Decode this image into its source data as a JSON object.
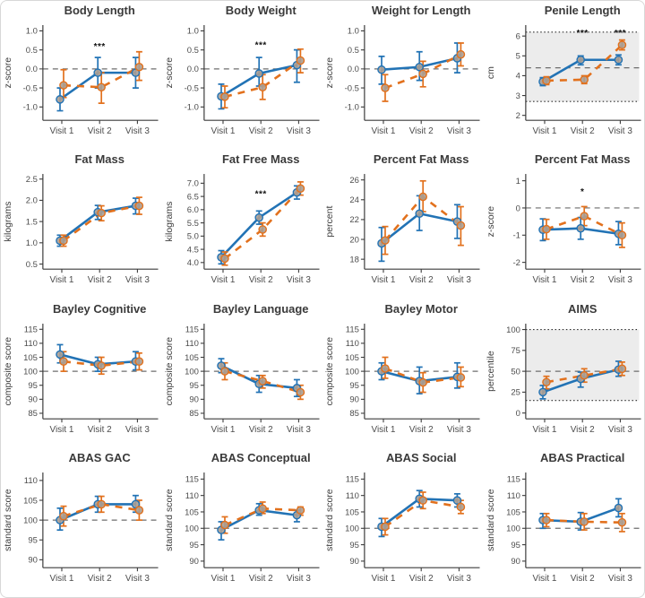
{
  "figure": {
    "x_categories": [
      "Visit 1",
      "Visit 2",
      "Visit 3"
    ],
    "colors": {
      "series_blue": "#2273b5",
      "series_orange": "#e2711d",
      "marker_fill": "#ab9e94",
      "band_fill": "#ececec",
      "refline": "#6e6e6e",
      "dotted_line": "#2b2b2b",
      "axis": "#3c3c3c",
      "tick_text": "#4c4c4c",
      "title_text": "#3a3a3a",
      "sig_text": "#111111"
    }
  },
  "chart_data": [
    {
      "type": "line",
      "title": "Body Length",
      "ylabel": "z-score",
      "ylim": [
        -1.35,
        1.15
      ],
      "yticks": [
        "-1.0",
        "-0.5",
        "0.0",
        "0.5",
        "1.0"
      ],
      "refline_dashed": 0,
      "band": null,
      "sig": [
        {
          "visit_index": 1,
          "y": 0.52,
          "label": "***"
        }
      ],
      "series": [
        {
          "name": "blue-solid",
          "color_key": "series_blue",
          "dash": "solid",
          "values": [
            -0.8,
            -0.1,
            -0.1
          ],
          "err_lo": [
            -1.1,
            -0.5,
            -0.5
          ],
          "err_hi": [
            -0.5,
            0.3,
            0.3
          ]
        },
        {
          "name": "orange-dashed",
          "color_key": "series_orange",
          "dash": "dashed",
          "values": [
            -0.43,
            -0.48,
            0.05
          ],
          "err_lo": [
            -0.75,
            -0.9,
            -0.3
          ],
          "err_hi": [
            -0.02,
            -0.1,
            0.45
          ]
        }
      ]
    },
    {
      "type": "line",
      "title": "Body Weight",
      "ylabel": "z-score",
      "ylim": [
        -1.35,
        1.15
      ],
      "yticks": [
        "-1.0",
        "-0.5",
        "0.0",
        "0.5",
        "1.0"
      ],
      "refline_dashed": 0,
      "band": null,
      "sig": [
        {
          "visit_index": 1,
          "y": 0.55,
          "label": "***"
        }
      ],
      "series": [
        {
          "name": "blue-solid",
          "color_key": "series_blue",
          "dash": "solid",
          "values": [
            -0.72,
            -0.12,
            0.1
          ],
          "err_lo": [
            -1.05,
            -0.45,
            -0.35
          ],
          "err_hi": [
            -0.4,
            0.3,
            0.5
          ]
        },
        {
          "name": "orange-dashed",
          "color_key": "series_orange",
          "dash": "dashed",
          "values": [
            -0.73,
            -0.48,
            0.22
          ],
          "err_lo": [
            -1.02,
            -0.8,
            -0.1
          ],
          "err_hi": [
            -0.45,
            -0.15,
            0.52
          ]
        }
      ]
    },
    {
      "type": "line",
      "title": "Weight for Length",
      "ylabel": "z-score",
      "ylim": [
        -1.35,
        1.15
      ],
      "yticks": [
        "-1.0",
        "-0.5",
        "0.0",
        "0.5",
        "1.0"
      ],
      "refline_dashed": 0,
      "band": null,
      "sig": [],
      "series": [
        {
          "name": "blue-solid",
          "color_key": "series_blue",
          "dash": "solid",
          "values": [
            -0.02,
            0.05,
            0.28
          ],
          "err_lo": [
            -0.4,
            -0.3,
            -0.1
          ],
          "err_hi": [
            0.33,
            0.45,
            0.68
          ]
        },
        {
          "name": "orange-dashed",
          "color_key": "series_orange",
          "dash": "dashed",
          "values": [
            -0.5,
            -0.13,
            0.38
          ],
          "err_lo": [
            -0.85,
            -0.47,
            0.08
          ],
          "err_hi": [
            -0.15,
            0.2,
            0.68
          ]
        }
      ]
    },
    {
      "type": "line",
      "title": "Penile Length",
      "ylabel": "cm",
      "ylim": [
        1.75,
        6.55
      ],
      "yticks": [
        "2",
        "3",
        "4",
        "5",
        "6"
      ],
      "refline_dashed": 4.4,
      "band": [
        2.7,
        6.2
      ],
      "sig": [
        {
          "visit_index": 1,
          "y": 6.02,
          "label": "***"
        },
        {
          "visit_index": 2,
          "y": 6.02,
          "label": "***"
        }
      ],
      "series": [
        {
          "name": "blue-solid",
          "color_key": "series_blue",
          "dash": "solid",
          "values": [
            3.7,
            4.8,
            4.8
          ],
          "err_lo": [
            3.5,
            4.55,
            4.55
          ],
          "err_hi": [
            3.9,
            5.0,
            5.05
          ]
        },
        {
          "name": "orange-dashed",
          "color_key": "series_orange",
          "dash": "dashed",
          "values": [
            3.75,
            3.8,
            5.55
          ],
          "err_lo": [
            3.55,
            3.6,
            5.3
          ],
          "err_hi": [
            3.95,
            4.0,
            5.8
          ]
        }
      ]
    },
    {
      "type": "line",
      "title": "Fat Mass",
      "ylabel": "kilograms",
      "ylim": [
        0.38,
        2.62
      ],
      "yticks": [
        "0.5",
        "1.0",
        "1.5",
        "2.0",
        "2.5"
      ],
      "refline_dashed": null,
      "band": null,
      "sig": [],
      "series": [
        {
          "name": "blue-solid",
          "color_key": "series_blue",
          "dash": "solid",
          "values": [
            1.05,
            1.72,
            1.87
          ],
          "err_lo": [
            0.92,
            1.55,
            1.68
          ],
          "err_hi": [
            1.18,
            1.88,
            2.05
          ]
        },
        {
          "name": "orange-dashed",
          "color_key": "series_orange",
          "dash": "dashed",
          "values": [
            1.05,
            1.7,
            1.87
          ],
          "err_lo": [
            0.92,
            1.52,
            1.67
          ],
          "err_hi": [
            1.18,
            1.87,
            2.07
          ]
        }
      ]
    },
    {
      "type": "line",
      "title": "Fat Free Mass",
      "ylabel": "kilograms",
      "ylim": [
        3.75,
        7.35
      ],
      "yticks": [
        "4.0",
        "4.5",
        "5.0",
        "5.5",
        "6.0",
        "6.5",
        "7.0"
      ],
      "refline_dashed": null,
      "band": null,
      "sig": [
        {
          "visit_index": 1,
          "y": 6.48,
          "label": "***"
        }
      ],
      "series": [
        {
          "name": "blue-solid",
          "color_key": "series_blue",
          "dash": "solid",
          "values": [
            4.2,
            5.7,
            6.65
          ],
          "err_lo": [
            3.95,
            5.45,
            6.4
          ],
          "err_hi": [
            4.45,
            5.95,
            6.9
          ]
        },
        {
          "name": "orange-dashed",
          "color_key": "series_orange",
          "dash": "dashed",
          "values": [
            4.15,
            5.25,
            6.8
          ],
          "err_lo": [
            3.9,
            5.0,
            6.55
          ],
          "err_hi": [
            4.4,
            5.5,
            7.05
          ]
        }
      ]
    },
    {
      "type": "line",
      "title": "Percent Fat Mass",
      "ylabel": "percent",
      "ylim": [
        17.0,
        26.6
      ],
      "yticks": [
        "18",
        "20",
        "22",
        "24",
        "26"
      ],
      "refline_dashed": null,
      "band": null,
      "sig": [],
      "series": [
        {
          "name": "blue-solid",
          "color_key": "series_blue",
          "dash": "solid",
          "values": [
            19.6,
            22.6,
            21.8
          ],
          "err_lo": [
            17.8,
            20.9,
            20.1
          ],
          "err_hi": [
            21.2,
            24.4,
            23.5
          ]
        },
        {
          "name": "orange-dashed",
          "color_key": "series_orange",
          "dash": "dashed",
          "values": [
            19.9,
            24.3,
            21.4
          ],
          "err_lo": [
            18.5,
            22.8,
            19.4
          ],
          "err_hi": [
            21.3,
            25.9,
            23.3
          ]
        }
      ]
    },
    {
      "type": "line",
      "title": "Percent Fat Mass",
      "ylabel": "z-score",
      "ylim": [
        -2.25,
        1.25
      ],
      "yticks": [
        "-2",
        "-1",
        "0",
        "1"
      ],
      "refline_dashed": 0,
      "band": null,
      "sig": [
        {
          "visit_index": 1,
          "y": 0.5,
          "label": "*"
        }
      ],
      "series": [
        {
          "name": "blue-solid",
          "color_key": "series_blue",
          "dash": "solid",
          "values": [
            -0.8,
            -0.75,
            -0.95
          ],
          "err_lo": [
            -1.2,
            -1.15,
            -1.35
          ],
          "err_hi": [
            -0.4,
            -0.35,
            -0.5
          ]
        },
        {
          "name": "orange-dashed",
          "color_key": "series_orange",
          "dash": "dashed",
          "values": [
            -0.78,
            -0.3,
            -1.0
          ],
          "err_lo": [
            -1.15,
            -0.65,
            -1.45
          ],
          "err_hi": [
            -0.42,
            0.05,
            -0.55
          ]
        }
      ]
    },
    {
      "type": "line",
      "title": "Bayley Cognitive",
      "ylabel": "composite score",
      "ylim": [
        83,
        117
      ],
      "yticks": [
        "85",
        "90",
        "95",
        "100",
        "105",
        "110",
        "115"
      ],
      "refline_dashed": 100,
      "band": null,
      "sig": [],
      "series": [
        {
          "name": "blue-solid",
          "color_key": "series_blue",
          "dash": "solid",
          "values": [
            106,
            102.5,
            103.5
          ],
          "err_lo": [
            103,
            100,
            100.5
          ],
          "err_hi": [
            109.5,
            105,
            107
          ]
        },
        {
          "name": "orange-dashed",
          "color_key": "series_orange",
          "dash": "dashed",
          "values": [
            103.5,
            102,
            103.5
          ],
          "err_lo": [
            100,
            99,
            100.5
          ],
          "err_hi": [
            107,
            105,
            106.5
          ]
        }
      ]
    },
    {
      "type": "line",
      "title": "Bayley Language",
      "ylabel": "composite score",
      "ylim": [
        83,
        117
      ],
      "yticks": [
        "85",
        "90",
        "95",
        "100",
        "105",
        "110",
        "115"
      ],
      "refline_dashed": 100,
      "band": null,
      "sig": [],
      "series": [
        {
          "name": "blue-solid",
          "color_key": "series_blue",
          "dash": "solid",
          "values": [
            102,
            95.5,
            94
          ],
          "err_lo": [
            99.5,
            92.5,
            91
          ],
          "err_hi": [
            104.5,
            98.5,
            97
          ]
        },
        {
          "name": "orange-dashed",
          "color_key": "series_orange",
          "dash": "dashed",
          "values": [
            100,
            96.5,
            92.5
          ],
          "err_lo": [
            97,
            94,
            90
          ],
          "err_hi": [
            103,
            98.5,
            95
          ]
        }
      ]
    },
    {
      "type": "line",
      "title": "Bayley Motor",
      "ylabel": "composite score",
      "ylim": [
        83,
        117
      ],
      "yticks": [
        "85",
        "90",
        "95",
        "100",
        "105",
        "110",
        "115"
      ],
      "refline_dashed": 100,
      "band": null,
      "sig": [],
      "series": [
        {
          "name": "blue-solid",
          "color_key": "series_blue",
          "dash": "solid",
          "values": [
            100,
            96.5,
            98
          ],
          "err_lo": [
            97,
            92,
            94
          ],
          "err_hi": [
            103,
            101.5,
            103
          ]
        },
        {
          "name": "orange-dashed",
          "color_key": "series_orange",
          "dash": "dashed",
          "values": [
            101,
            96,
            97.8
          ],
          "err_lo": [
            97.5,
            92.5,
            94.5
          ],
          "err_hi": [
            105,
            99.5,
            101.5
          ]
        }
      ]
    },
    {
      "type": "line",
      "title": "AIMS",
      "ylabel": "percentile",
      "ylim": [
        -7,
        107
      ],
      "yticks": [
        "0",
        "25",
        "50",
        "75",
        "100"
      ],
      "refline_dashed": 50,
      "band": [
        15,
        100
      ],
      "sig": [],
      "series": [
        {
          "name": "blue-solid",
          "color_key": "series_blue",
          "dash": "solid",
          "values": [
            25,
            41,
            52
          ],
          "err_lo": [
            17,
            31,
            44
          ],
          "err_hi": [
            33,
            49,
            62
          ]
        },
        {
          "name": "orange-dashed",
          "color_key": "series_orange",
          "dash": "dashed",
          "values": [
            37,
            45,
            53
          ],
          "err_lo": [
            29,
            37,
            45
          ],
          "err_hi": [
            44,
            53,
            61
          ]
        }
      ]
    },
    {
      "type": "line",
      "title": "ABAS GAC",
      "ylabel": "standard score",
      "ylim": [
        88,
        112
      ],
      "yticks": [
        "90",
        "95",
        "100",
        "105",
        "110"
      ],
      "refline_dashed": 100,
      "band": null,
      "sig": [],
      "series": [
        {
          "name": "blue-solid",
          "color_key": "series_blue",
          "dash": "solid",
          "values": [
            100,
            104,
            104
          ],
          "err_lo": [
            97.5,
            102,
            102
          ],
          "err_hi": [
            103,
            106,
            106.2
          ]
        },
        {
          "name": "orange-dashed",
          "color_key": "series_orange",
          "dash": "dashed",
          "values": [
            101,
            104,
            102.5
          ],
          "err_lo": [
            98.5,
            102,
            100
          ],
          "err_hi": [
            103.5,
            106,
            105
          ]
        }
      ]
    },
    {
      "type": "line",
      "title": "ABAS Conceptual",
      "ylabel": "standard score",
      "ylim": [
        88,
        117
      ],
      "yticks": [
        "90",
        "95",
        "100",
        "105",
        "110",
        "115"
      ],
      "refline_dashed": 100,
      "band": null,
      "sig": [],
      "series": [
        {
          "name": "blue-solid",
          "color_key": "series_blue",
          "dash": "solid",
          "values": [
            99.5,
            105.5,
            104
          ],
          "err_lo": [
            96.5,
            104,
            102
          ],
          "err_hi": [
            102,
            107.5,
            105.5
          ]
        },
        {
          "name": "orange-dashed",
          "color_key": "series_orange",
          "dash": "dashed",
          "values": [
            101,
            106,
            105.5
          ],
          "err_lo": [
            98.5,
            104.5,
            104
          ],
          "err_hi": [
            103.5,
            108,
            106.5
          ]
        }
      ]
    },
    {
      "type": "line",
      "title": "ABAS Social",
      "ylabel": "standard score",
      "ylim": [
        88,
        117
      ],
      "yticks": [
        "90",
        "95",
        "100",
        "105",
        "110",
        "115"
      ],
      "refline_dashed": 100,
      "band": null,
      "sig": [],
      "series": [
        {
          "name": "blue-solid",
          "color_key": "series_blue",
          "dash": "solid",
          "values": [
            100.5,
            109,
            108.5
          ],
          "err_lo": [
            97.5,
            106.5,
            106.5
          ],
          "err_hi": [
            103,
            111.5,
            110.5
          ]
        },
        {
          "name": "orange-dashed",
          "color_key": "series_orange",
          "dash": "dashed",
          "values": [
            100.5,
            108.5,
            106.5
          ],
          "err_lo": [
            98,
            106,
            104.5
          ],
          "err_hi": [
            103,
            111,
            108.5
          ]
        }
      ]
    },
    {
      "type": "line",
      "title": "ABAS Practical",
      "ylabel": "standard score",
      "ylim": [
        88,
        117
      ],
      "yticks": [
        "90",
        "95",
        "100",
        "105",
        "110",
        "115"
      ],
      "refline_dashed": 100,
      "band": null,
      "sig": [],
      "series": [
        {
          "name": "blue-solid",
          "color_key": "series_blue",
          "dash": "solid",
          "values": [
            102.5,
            102,
            106.2
          ],
          "err_lo": [
            100,
            99.5,
            103.5
          ],
          "err_hi": [
            104.5,
            104.8,
            109
          ]
        },
        {
          "name": "orange-dashed",
          "color_key": "series_orange",
          "dash": "dashed",
          "values": [
            102.5,
            102,
            101.8
          ],
          "err_lo": [
            100.5,
            99.5,
            99
          ],
          "err_hi": [
            104.5,
            104.5,
            104.5
          ]
        }
      ]
    }
  ]
}
